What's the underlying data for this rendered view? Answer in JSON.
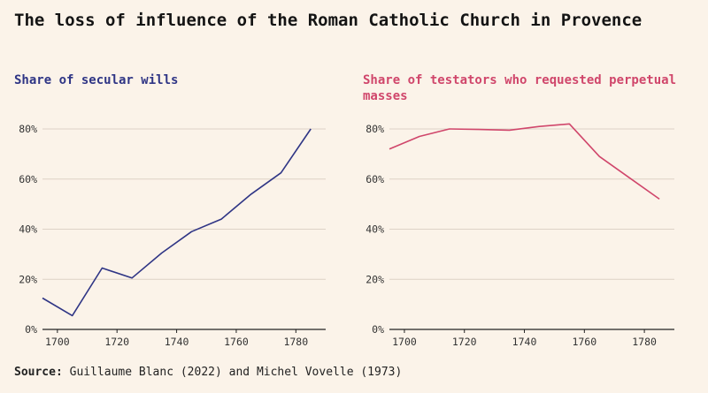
{
  "title": "The loss of influence of the Roman Catholic Church in Provence",
  "source_label": "Source:",
  "source_text": "Guillaume Blanc (2022) and Michel Vovelle (1973)",
  "colors": {
    "background": "#fbf3e9",
    "left_series": "#2f3585",
    "right_series": "#d0466b",
    "grid": "#ddd2c6",
    "axis": "#222222"
  },
  "chart_data": [
    {
      "type": "line",
      "title": "Share of secular wills",
      "title_color": "#2f3585",
      "line_color": "#2f3585",
      "x": [
        1695,
        1705,
        1715,
        1725,
        1735,
        1745,
        1755,
        1765,
        1775,
        1785
      ],
      "y": [
        12.5,
        5.5,
        24.5,
        20.5,
        30.5,
        39,
        44,
        54,
        62.5,
        80
      ],
      "xticks": [
        1700,
        1720,
        1740,
        1760,
        1780
      ],
      "yticks": [
        0,
        20,
        40,
        60,
        80
      ],
      "ytick_labels": [
        "0%",
        "20%",
        "40%",
        "60%",
        "80%"
      ],
      "xlim": [
        1695,
        1790
      ],
      "ylim": [
        0,
        80
      ],
      "grid": true
    },
    {
      "type": "line",
      "title": "Share of testators who requested perpetual masses",
      "title_color": "#d0466b",
      "line_color": "#d0466b",
      "x": [
        1695,
        1705,
        1715,
        1725,
        1735,
        1745,
        1755,
        1765,
        1775,
        1785
      ],
      "y": [
        72,
        77,
        80,
        79.8,
        79.5,
        81,
        82,
        69,
        60.5,
        52
      ],
      "xticks": [
        1700,
        1720,
        1740,
        1760,
        1780
      ],
      "yticks": [
        0,
        20,
        40,
        60,
        80
      ],
      "ytick_labels": [
        "0%",
        "20%",
        "40%",
        "60%",
        "80%"
      ],
      "xlim": [
        1695,
        1790
      ],
      "ylim": [
        0,
        80
      ],
      "grid": true
    }
  ]
}
